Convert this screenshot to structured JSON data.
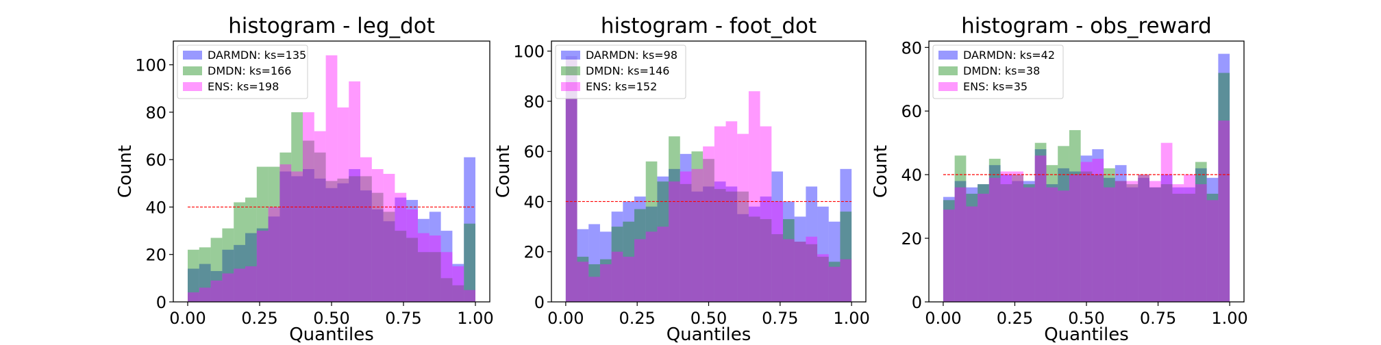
{
  "colors": {
    "DARMDN": "#0000ff",
    "DMDN": "#008000",
    "ENS": "#ff00ff",
    "reference_line": "#ff0000",
    "bar_alpha": 0.4
  },
  "chart_data": [
    {
      "type": "bar",
      "title": "histogram - leg_dot",
      "xlabel": "Quantiles",
      "ylabel": "Count",
      "xlim": [
        -0.05,
        1.05
      ],
      "ylim": [
        0,
        110
      ],
      "xticks": [
        "0.00",
        "0.25",
        "0.50",
        "0.75",
        "1.00"
      ],
      "yticks": [
        "0",
        "20",
        "40",
        "60",
        "80",
        "100"
      ],
      "bins": 25,
      "reference_value": 40,
      "legend_position": "upper-left",
      "series": [
        {
          "name": "DARMDN: ks=135",
          "values": [
            14,
            16,
            13,
            22,
            24,
            29,
            31,
            36,
            55,
            53,
            56,
            52,
            48,
            50,
            56,
            47,
            39,
            34,
            44,
            43,
            35,
            38,
            30,
            16,
            61
          ]
        },
        {
          "name": "DMDN: ks=166",
          "values": [
            22,
            23,
            27,
            31,
            42,
            44,
            57,
            57,
            63,
            80,
            68,
            63,
            51,
            52,
            53,
            53,
            46,
            38,
            30,
            27,
            21,
            21,
            10,
            7,
            33
          ]
        },
        {
          "name": "ENS: ks=198",
          "values": [
            4,
            6,
            9,
            12,
            14,
            15,
            30,
            40,
            58,
            55,
            80,
            72,
            104,
            82,
            93,
            61,
            56,
            54,
            46,
            39,
            29,
            28,
            21,
            15,
            5
          ]
        }
      ]
    },
    {
      "type": "bar",
      "title": "histogram - foot_dot",
      "xlabel": "Quantiles",
      "ylabel": "Count",
      "xlim": [
        -0.05,
        1.05
      ],
      "ylim": [
        0,
        104
      ],
      "xticks": [
        "0.00",
        "0.25",
        "0.50",
        "0.75",
        "1.00"
      ],
      "yticks": [
        "0",
        "20",
        "40",
        "60",
        "80",
        "100"
      ],
      "bins": 25,
      "reference_value": 40,
      "legend_position": "upper-left",
      "series": [
        {
          "name": "DARMDN: ks=98",
          "values": [
            98,
            29,
            31,
            28,
            36,
            40,
            42,
            38,
            50,
            53,
            59,
            44,
            46,
            48,
            46,
            35,
            38,
            42,
            52,
            40,
            34,
            46,
            38,
            32,
            53
          ]
        },
        {
          "name": "DMDN: ks=146",
          "values": [
            98,
            18,
            15,
            17,
            30,
            32,
            37,
            56,
            48,
            66,
            47,
            60,
            57,
            45,
            44,
            44,
            34,
            33,
            27,
            33,
            24,
            23,
            18,
            16,
            36
          ]
        },
        {
          "name": "ENS: ks=152",
          "values": [
            98,
            16,
            10,
            15,
            20,
            18,
            25,
            28,
            30,
            48,
            52,
            53,
            62,
            70,
            72,
            67,
            84,
            70,
            40,
            25,
            24,
            26,
            19,
            14,
            17
          ]
        }
      ]
    },
    {
      "type": "bar",
      "title": "histogram - obs_reward",
      "xlabel": "Quantiles",
      "ylabel": "Count",
      "xlim": [
        -0.05,
        1.05
      ],
      "ylim": [
        0,
        82
      ],
      "xticks": [
        "0.00",
        "0.25",
        "0.50",
        "0.75",
        "1.00"
      ],
      "yticks": [
        "0",
        "20",
        "40",
        "60",
        "80"
      ],
      "bins": 25,
      "reference_value": 40,
      "legend_position": "upper-left",
      "series": [
        {
          "name": "DARMDN: ks=42",
          "values": [
            33,
            38,
            36,
            37,
            43,
            40,
            38,
            38,
            48,
            37,
            42,
            41,
            46,
            48,
            39,
            43,
            36,
            39,
            36,
            40,
            36,
            36,
            42,
            39,
            78
          ]
        },
        {
          "name": "DMDN: ks=38",
          "values": [
            32,
            46,
            34,
            37,
            45,
            37,
            40,
            37,
            50,
            43,
            49,
            54,
            41,
            40,
            42,
            38,
            37,
            40,
            36,
            37,
            34,
            34,
            44,
            34,
            72
          ]
        },
        {
          "name": "ENS: ks=35",
          "values": [
            29,
            36,
            30,
            34,
            39,
            41,
            41,
            36,
            46,
            36,
            35,
            40,
            44,
            45,
            36,
            38,
            38,
            40,
            38,
            50,
            37,
            40,
            37,
            32,
            57
          ]
        }
      ]
    }
  ]
}
